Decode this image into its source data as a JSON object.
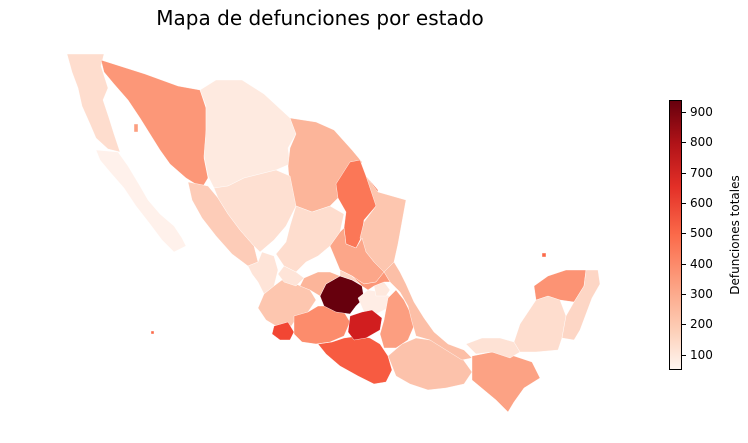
{
  "title": "Mapa de defunciones por estado",
  "colorbar": {
    "label": "Defunciones totales",
    "min": 50,
    "max": 940,
    "ticks": [
      100,
      200,
      300,
      400,
      500,
      600,
      700,
      800,
      900
    ]
  },
  "colors": {
    "low": "#fff5f0",
    "high": "#67000d"
  },
  "chart_data": {
    "type": "choropleth",
    "title": "Mapa de defunciones por estado",
    "colorbar_label": "Defunciones totales",
    "vmin": 50,
    "vmax": 940,
    "regions": [
      {
        "id": "baja-california",
        "value": 170
      },
      {
        "id": "baja-california-sur",
        "value": 70
      },
      {
        "id": "sonora",
        "value": 370
      },
      {
        "id": "chihuahua",
        "value": 110
      },
      {
        "id": "coahuila",
        "value": 290
      },
      {
        "id": "nuevo-leon",
        "value": 460
      },
      {
        "id": "tamaulipas",
        "value": 240
      },
      {
        "id": "sinaloa",
        "value": 220
      },
      {
        "id": "durango",
        "value": 160
      },
      {
        "id": "zacatecas",
        "value": 170
      },
      {
        "id": "nayarit",
        "value": 140
      },
      {
        "id": "jalisco",
        "value": 240
      },
      {
        "id": "colima",
        "value": 580
      },
      {
        "id": "michoacan",
        "value": 400
      },
      {
        "id": "guerrero",
        "value": 530
      },
      {
        "id": "mexico",
        "value": 940
      },
      {
        "id": "morelos",
        "value": 700
      },
      {
        "id": "puebla",
        "value": 350
      },
      {
        "id": "tlaxcala",
        "value": 120
      },
      {
        "id": "oaxaca",
        "value": 250
      },
      {
        "id": "chiapas",
        "value": 340
      },
      {
        "id": "veracruz",
        "value": 260
      },
      {
        "id": "tabasco",
        "value": 150
      },
      {
        "id": "campeche",
        "value": 170
      },
      {
        "id": "yucatan",
        "value": 380
      },
      {
        "id": "quintana-roo",
        "value": 190
      },
      {
        "id": "san-luis-potosi",
        "value": 330
      },
      {
        "id": "aguascalientes",
        "value": 140
      },
      {
        "id": "guanajuato",
        "value": 290
      },
      {
        "id": "queretaro",
        "value": 190
      },
      {
        "id": "hidalgo",
        "value": 370
      },
      {
        "id": "cdmx",
        "value": 90
      }
    ]
  }
}
